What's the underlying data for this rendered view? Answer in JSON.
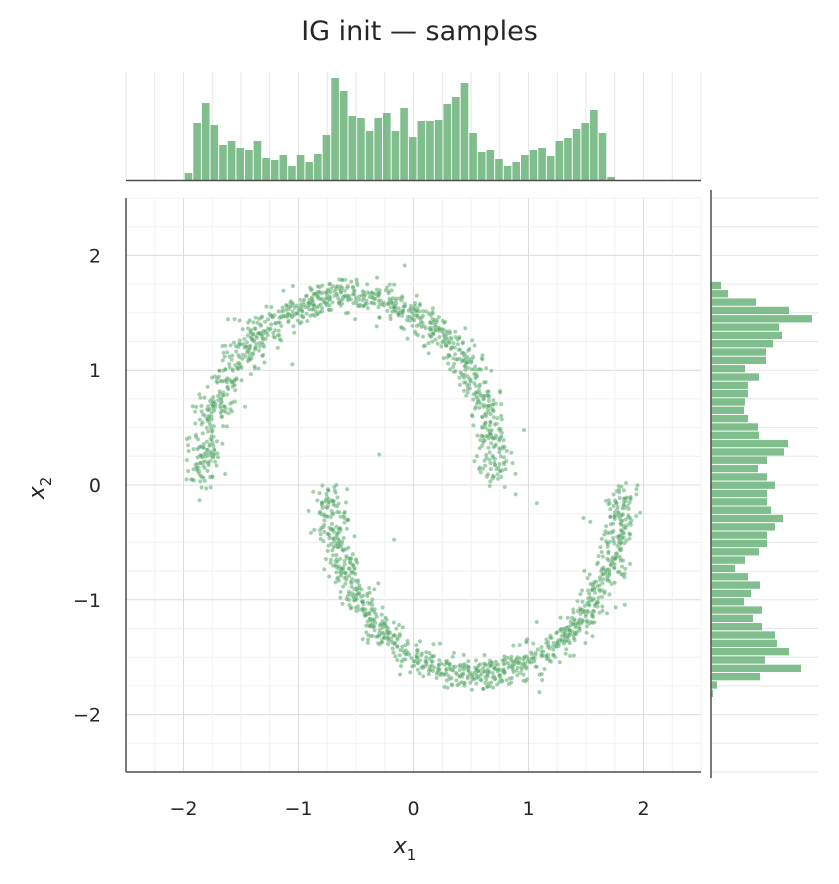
{
  "chart_data": {
    "type": "scatter",
    "title": "IG init — samples",
    "xlabel": "x",
    "xlabel_sub": "1",
    "ylabel": "x",
    "ylabel_sub": "2",
    "xlim": [
      -2.5,
      2.5
    ],
    "ylim": [
      -2.5,
      2.5
    ],
    "xticks": [
      -2,
      -1,
      0,
      1,
      2
    ],
    "yticks": [
      -2,
      -1,
      0,
      1,
      2
    ],
    "xtick_labels": [
      "−2",
      "−1",
      "0",
      "1",
      "2"
    ],
    "ytick_labels": [
      "−2",
      "−1",
      "0",
      "1",
      "2"
    ],
    "grid": true,
    "minor_grid": true,
    "color": "#55a868",
    "marker_alpha": 0.55,
    "description": "Two interleaving half-moon shaped clusters (joint plot with marginal histograms)",
    "series": [
      {
        "name": "upper moon",
        "shape": "arc",
        "center": [
          -0.55,
          0.05
        ],
        "radius": 1.45,
        "theta_range_deg": [
          0,
          180
        ],
        "x_range": [
          -1.85,
          0.7
        ],
        "y_range": [
          -0.55,
          1.75
        ],
        "n_points": 1050
      },
      {
        "name": "lower moon",
        "shape": "arc",
        "center": [
          0.55,
          -0.05
        ],
        "radius": 1.45,
        "theta_range_deg": [
          180,
          360
        ],
        "x_range": [
          -0.6,
          1.85
        ],
        "y_range": [
          -1.78,
          0.65
        ],
        "n_points": 1050
      }
    ],
    "marginal_x": {
      "type": "histogram",
      "bin_width": 0.075,
      "bin_start": -1.99,
      "counts": [
        7,
        57,
        77,
        55,
        35,
        39,
        32,
        30,
        39,
        22,
        20,
        25,
        14,
        25,
        18,
        26,
        45,
        102,
        89,
        64,
        62,
        49,
        62,
        67,
        49,
        72,
        43,
        59,
        59,
        60,
        76,
        83,
        97,
        47,
        28,
        30,
        21,
        14,
        18,
        25,
        30,
        32,
        24,
        39,
        42,
        51,
        57,
        70,
        47,
        3
      ]
    },
    "marginal_y": {
      "type": "histogram",
      "bin_width": 0.0725,
      "bin_start_top": 1.77,
      "counts": [
        10,
        17,
        45,
        78,
        101,
        68,
        71,
        62,
        55,
        55,
        34,
        48,
        37,
        37,
        34,
        33,
        37,
        47,
        48,
        77,
        73,
        56,
        47,
        56,
        64,
        56,
        56,
        60,
        72,
        64,
        56,
        56,
        48,
        34,
        24,
        37,
        49,
        40,
        33,
        51,
        42,
        51,
        64,
        66,
        78,
        54,
        90,
        49,
        6,
        2
      ]
    }
  }
}
